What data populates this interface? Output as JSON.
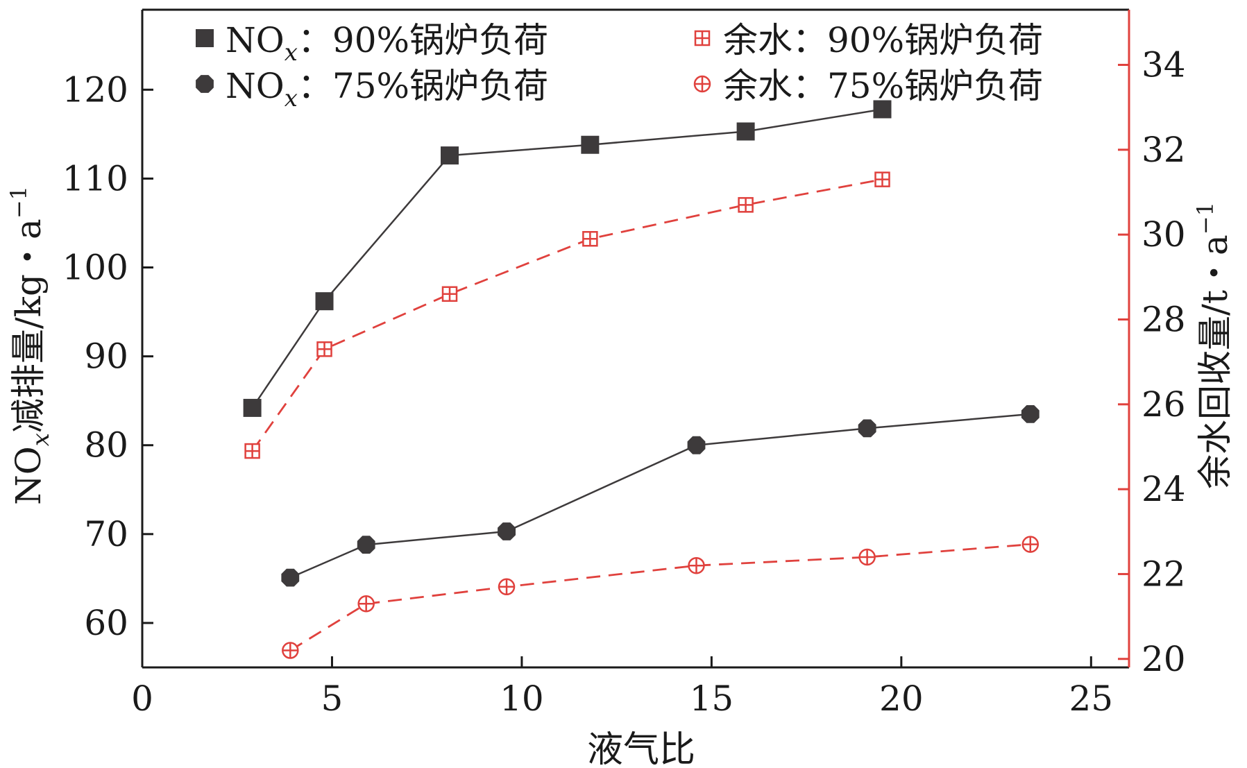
{
  "chart_data": {
    "type": "line",
    "xlabel": "液气比",
    "ylabel_left": "NOx减排量/kg・a⁻¹",
    "ylabel_right": "余水回收量/t・a⁻¹",
    "xlim": [
      0,
      26
    ],
    "xticks": [
      0,
      5,
      10,
      15,
      20,
      25
    ],
    "ylim_left": [
      55,
      129
    ],
    "yticks_left": [
      60,
      70,
      80,
      90,
      100,
      110,
      120
    ],
    "ylim_right": [
      19.8,
      35.3
    ],
    "yticks_right": [
      20,
      22,
      24,
      26,
      28,
      30,
      32,
      34
    ],
    "legend_position": "top",
    "series": [
      {
        "name": "NOx：90%锅炉负荷",
        "axis": "left",
        "marker": "square",
        "dash": "solid",
        "color": "#3d3a3b",
        "x": [
          2.9,
          4.8,
          8.1,
          11.8,
          15.9,
          19.5
        ],
        "y": [
          84.2,
          96.2,
          112.6,
          113.8,
          115.3,
          117.8
        ]
      },
      {
        "name": "NOx：75%锅炉负荷",
        "axis": "left",
        "marker": "circle",
        "dash": "solid",
        "color": "#3d3a3b",
        "x": [
          3.9,
          5.9,
          9.6,
          14.6,
          19.1,
          23.4
        ],
        "y": [
          65.1,
          68.8,
          70.3,
          80.0,
          81.9,
          83.5
        ]
      },
      {
        "name": "余水：90%锅炉负荷",
        "axis": "right",
        "marker": "square-cross",
        "dash": "dashed",
        "color": "#e0413d",
        "x": [
          2.9,
          4.8,
          8.1,
          11.8,
          15.9,
          19.5
        ],
        "y": [
          24.9,
          27.3,
          28.6,
          29.9,
          30.7,
          31.3
        ]
      },
      {
        "name": "余水：75%锅炉负荷",
        "axis": "right",
        "marker": "circle-cross",
        "dash": "dashed",
        "color": "#e0413d",
        "x": [
          3.9,
          5.9,
          9.6,
          14.6,
          19.1,
          23.4
        ],
        "y": [
          20.2,
          21.3,
          21.7,
          22.2,
          22.4,
          22.7
        ]
      }
    ],
    "legend": [
      {
        "series": 0,
        "prefix": "NO",
        "sub": "x",
        "text": "：90%锅炉负荷"
      },
      {
        "series": 1,
        "prefix": "NO",
        "sub": "x",
        "text": "：75%锅炉负荷"
      },
      {
        "series": 2,
        "prefix": "余水",
        "sub": "",
        "text": "：90%锅炉负荷"
      },
      {
        "series": 3,
        "prefix": "余水",
        "sub": "",
        "text": "：75%锅炉负荷"
      }
    ],
    "ylabel_left_parts": {
      "a": "NO",
      "sub": "x",
      "b": "减排量/kg・a",
      "sup": "−1"
    },
    "ylabel_right_parts": {
      "a": "余水回收量/t・a",
      "sup": "−1"
    },
    "colors": {
      "axis_left": "#1a1a1a",
      "axis_right": "#e0413d",
      "text": "#1a1a1a"
    }
  }
}
